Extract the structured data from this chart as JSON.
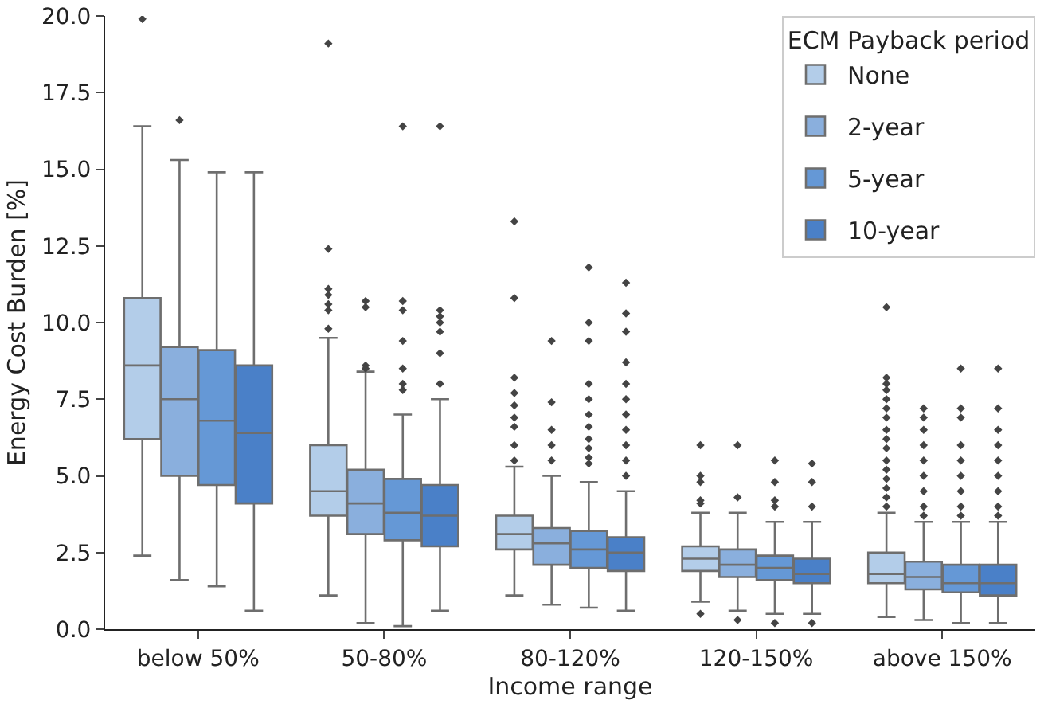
{
  "chart_data": {
    "type": "box",
    "xlabel": "Income range",
    "ylabel": "Energy Cost Burden [%]",
    "legend_title": "ECM Payback period",
    "legend": "top right",
    "grid": false,
    "marker": "diamond",
    "categories": [
      "below 50%",
      "50-80%",
      "80-120%",
      "120-150%",
      "above 150%"
    ],
    "ylim": [
      0,
      20
    ],
    "yticks": [
      {
        "value": 0,
        "label": "0.0"
      },
      {
        "value": 2.5,
        "label": "2.5"
      },
      {
        "value": 5,
        "label": "5.0"
      },
      {
        "value": 7.5,
        "label": "7.5"
      },
      {
        "value": 10,
        "label": "10.0"
      },
      {
        "value": 12.5,
        "label": "12.5"
      },
      {
        "value": 15,
        "label": "15.0"
      },
      {
        "value": 17.5,
        "label": "17.5"
      },
      {
        "value": 20,
        "label": "20.0"
      }
    ],
    "series": [
      {
        "name": "None",
        "color": "#b3cde9",
        "boxes": [
          {
            "low": 2.4,
            "q1": 6.2,
            "median": 8.6,
            "q3": 10.8,
            "high": 16.4,
            "outliers": [
              19.9
            ]
          },
          {
            "low": 1.1,
            "q1": 3.7,
            "median": 4.5,
            "q3": 6.0,
            "high": 9.5,
            "outliers": [
              19.1,
              12.4,
              11.1,
              10.9,
              10.6,
              10.4,
              9.8
            ]
          },
          {
            "low": 1.1,
            "q1": 2.6,
            "median": 3.1,
            "q3": 3.7,
            "high": 5.3,
            "outliers": [
              13.3,
              10.8,
              8.2,
              7.7,
              7.3,
              6.9,
              6.6,
              6.0,
              5.5
            ]
          },
          {
            "low": 0.9,
            "q1": 1.9,
            "median": 2.3,
            "q3": 2.7,
            "high": 3.8,
            "outliers": [
              6.0,
              5.0,
              4.8,
              4.2,
              4.1,
              0.5
            ]
          },
          {
            "low": 0.4,
            "q1": 1.5,
            "median": 1.8,
            "q3": 2.5,
            "high": 3.8,
            "outliers": [
              10.5,
              8.2,
              8.0,
              7.8,
              7.5,
              7.2,
              6.9,
              6.5,
              6.2,
              5.9,
              5.5,
              5.2,
              4.9,
              4.6,
              4.3,
              4.0
            ]
          }
        ]
      },
      {
        "name": "2-year",
        "color": "#8aafdd",
        "boxes": [
          {
            "low": 1.6,
            "q1": 5.0,
            "median": 7.5,
            "q3": 9.2,
            "high": 15.3,
            "outliers": [
              16.6
            ]
          },
          {
            "low": 0.2,
            "q1": 3.1,
            "median": 4.1,
            "q3": 5.2,
            "high": 8.4,
            "outliers": [
              10.7,
              10.5,
              8.6,
              8.5
            ]
          },
          {
            "low": 0.8,
            "q1": 2.1,
            "median": 2.8,
            "q3": 3.3,
            "high": 5.0,
            "outliers": [
              9.4,
              7.4,
              6.5,
              6.0,
              5.5
            ]
          },
          {
            "low": 0.6,
            "q1": 1.7,
            "median": 2.1,
            "q3": 2.6,
            "high": 3.8,
            "outliers": [
              6.0,
              4.3,
              0.3
            ]
          },
          {
            "low": 0.3,
            "q1": 1.3,
            "median": 1.7,
            "q3": 2.2,
            "high": 3.5,
            "outliers": [
              7.2,
              6.9,
              6.5,
              6.0,
              5.5,
              5.0,
              4.5,
              4.0,
              3.7
            ]
          }
        ]
      },
      {
        "name": "5-year",
        "color": "#6598d6",
        "boxes": [
          {
            "low": 1.4,
            "q1": 4.7,
            "median": 6.8,
            "q3": 9.1,
            "high": 14.9
          },
          {
            "low": 0.1,
            "q1": 2.9,
            "median": 3.8,
            "q3": 4.9,
            "high": 7.0,
            "outliers": [
              16.4,
              10.7,
              10.4,
              9.4,
              8.5,
              8.0,
              7.8
            ]
          },
          {
            "low": 0.7,
            "q1": 2.0,
            "median": 2.6,
            "q3": 3.2,
            "high": 4.8,
            "outliers": [
              11.8,
              10.0,
              9.4,
              8.0,
              7.5,
              7.0,
              6.6,
              6.2,
              5.9,
              5.6,
              5.4
            ]
          },
          {
            "low": 0.5,
            "q1": 1.6,
            "median": 2.0,
            "q3": 2.4,
            "high": 3.5,
            "outliers": [
              5.5,
              4.8,
              4.2,
              4.0,
              0.2
            ]
          },
          {
            "low": 0.2,
            "q1": 1.2,
            "median": 1.5,
            "q3": 2.1,
            "high": 3.5,
            "outliers": [
              8.5,
              7.2,
              6.9,
              6.0,
              5.5,
              5.0,
              4.5,
              4.0,
              3.7
            ]
          }
        ]
      },
      {
        "name": "10-year",
        "color": "#4a80c8",
        "boxes": [
          {
            "low": 0.6,
            "q1": 4.1,
            "median": 6.4,
            "q3": 8.6,
            "high": 14.9
          },
          {
            "low": 0.6,
            "q1": 2.7,
            "median": 3.7,
            "q3": 4.7,
            "high": 7.5,
            "outliers": [
              16.4,
              10.4,
              10.2,
              10.0,
              9.7,
              9.0,
              8.0
            ]
          },
          {
            "low": 0.6,
            "q1": 1.9,
            "median": 2.5,
            "q3": 3.0,
            "high": 4.5,
            "outliers": [
              11.3,
              10.3,
              9.7,
              8.7,
              8.0,
              7.5,
              7.0,
              6.5,
              6.0,
              5.5,
              5.0
            ]
          },
          {
            "low": 0.5,
            "q1": 1.5,
            "median": 1.8,
            "q3": 2.3,
            "high": 3.5,
            "outliers": [
              5.4,
              4.8,
              4.0,
              0.2
            ]
          },
          {
            "low": 0.2,
            "q1": 1.1,
            "median": 1.5,
            "q3": 2.1,
            "high": 3.5,
            "outliers": [
              8.5,
              7.2,
              6.5,
              6.0,
              5.5,
              5.0,
              4.5,
              4.0,
              3.7
            ]
          }
        ]
      }
    ]
  }
}
